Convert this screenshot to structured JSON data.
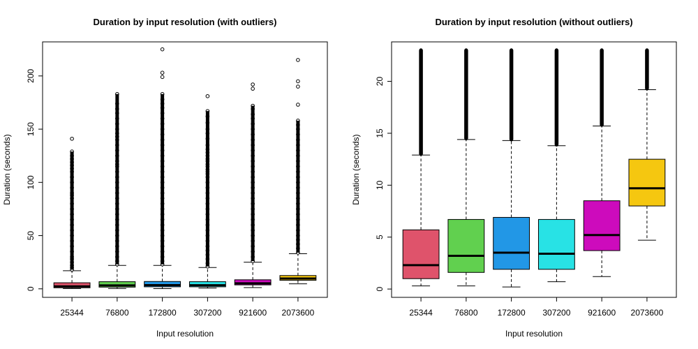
{
  "chart_data": [
    {
      "type": "box",
      "title": "Duration by input resolution (with outliers)",
      "xlabel": "Input resolution",
      "ylabel": "Duration (seconds)",
      "ylim": [
        -8,
        232
      ],
      "yticks": [
        0,
        50,
        100,
        150,
        200
      ],
      "categories": [
        "25344",
        "76800",
        "172800",
        "307200",
        "921600",
        "2073600"
      ],
      "colors": [
        "#DF536B",
        "#61D04F",
        "#2297E6",
        "#28E2E5",
        "#CD0BBC",
        "#F5C710"
      ],
      "boxes": [
        {
          "whisker_low": 0.3,
          "q1": 1.0,
          "median": 2.3,
          "q3": 5.7,
          "whisker_high": 17,
          "outliers": [
            18,
            20,
            22,
            25,
            28,
            30,
            35,
            40,
            45,
            50,
            55,
            60,
            65,
            70,
            75,
            80,
            85,
            88,
            90,
            95,
            100,
            105,
            110,
            113,
            116,
            119,
            122,
            125,
            129,
            141
          ]
        },
        {
          "whisker_low": 0.3,
          "q1": 1.6,
          "median": 3.2,
          "q3": 6.7,
          "whisker_high": 22,
          "outliers": [
            23,
            26,
            30,
            35,
            40,
            45,
            50,
            55,
            60,
            65,
            70,
            75,
            80,
            85,
            90,
            95,
            100,
            105,
            110,
            115,
            117,
            120,
            125,
            130,
            135,
            140,
            143,
            146,
            150,
            155,
            160,
            165,
            169,
            174,
            183
          ]
        },
        {
          "whisker_low": 0.2,
          "q1": 1.9,
          "median": 3.5,
          "q3": 6.9,
          "whisker_high": 22,
          "outliers": [
            23,
            26,
            30,
            35,
            40,
            45,
            50,
            55,
            60,
            65,
            70,
            75,
            80,
            85,
            90,
            95,
            100,
            105,
            110,
            115,
            120,
            125,
            130,
            135,
            140,
            145,
            150,
            155,
            160,
            165,
            170,
            174,
            178,
            183,
            199,
            203,
            225
          ]
        },
        {
          "whisker_low": 0.7,
          "q1": 1.9,
          "median": 3.4,
          "q3": 6.7,
          "whisker_high": 20,
          "outliers": [
            21,
            24,
            28,
            32,
            36,
            40,
            45,
            50,
            55,
            60,
            65,
            70,
            75,
            80,
            85,
            90,
            95,
            100,
            105,
            108,
            110,
            112,
            115,
            117,
            120,
            122,
            125,
            128,
            131,
            135,
            141,
            146,
            150,
            156,
            162,
            167,
            181
          ]
        },
        {
          "whisker_low": 1.2,
          "q1": 3.7,
          "median": 5.2,
          "q3": 8.5,
          "whisker_high": 25,
          "outliers": [
            26,
            30,
            35,
            40,
            45,
            50,
            55,
            60,
            65,
            70,
            75,
            80,
            85,
            90,
            95,
            100,
            105,
            110,
            115,
            120,
            125,
            130,
            135,
            140,
            145,
            150,
            155,
            160,
            164,
            169,
            172,
            188,
            192
          ]
        },
        {
          "whisker_low": 4.7,
          "q1": 8.0,
          "median": 9.7,
          "q3": 12.5,
          "whisker_high": 33,
          "outliers": [
            34,
            38,
            42,
            46,
            50,
            55,
            60,
            65,
            70,
            75,
            80,
            85,
            90,
            95,
            100,
            105,
            110,
            115,
            120,
            125,
            130,
            135,
            140,
            145,
            150,
            154,
            158,
            173,
            190,
            195,
            215
          ]
        }
      ]
    },
    {
      "type": "box",
      "title": "Duration by input resolution (without outliers)",
      "xlabel": "Input resolution",
      "ylabel": "Duration (seconds)",
      "ylim": [
        -0.8,
        23.8
      ],
      "yticks": [
        0,
        5,
        10,
        15,
        20
      ],
      "categories": [
        "25344",
        "76800",
        "172800",
        "307200",
        "921600",
        "2073600"
      ],
      "colors": [
        "#DF536B",
        "#61D04F",
        "#2297E6",
        "#28E2E5",
        "#CD0BBC",
        "#F5C710"
      ],
      "boxes": [
        {
          "whisker_low": 0.3,
          "q1": 1.0,
          "median": 2.3,
          "q3": 5.7,
          "whisker_high": 12.9,
          "outliers_from": 13.0,
          "outliers_to": 23.0
        },
        {
          "whisker_low": 0.3,
          "q1": 1.6,
          "median": 3.2,
          "q3": 6.7,
          "whisker_high": 14.4,
          "outliers_from": 14.5,
          "outliers_to": 23.0
        },
        {
          "whisker_low": 0.2,
          "q1": 1.9,
          "median": 3.5,
          "q3": 6.9,
          "whisker_high": 14.3,
          "outliers_from": 14.4,
          "outliers_to": 23.0
        },
        {
          "whisker_low": 0.7,
          "q1": 1.9,
          "median": 3.4,
          "q3": 6.7,
          "whisker_high": 13.8,
          "outliers_from": 13.9,
          "outliers_to": 23.0
        },
        {
          "whisker_low": 1.2,
          "q1": 3.7,
          "median": 5.2,
          "q3": 8.5,
          "whisker_high": 15.7,
          "outliers_from": 15.8,
          "outliers_to": 23.0
        },
        {
          "whisker_low": 4.7,
          "q1": 8.0,
          "median": 9.7,
          "q3": 12.5,
          "whisker_high": 19.2,
          "outliers_from": 19.3,
          "outliers_to": 23.0
        }
      ]
    }
  ]
}
